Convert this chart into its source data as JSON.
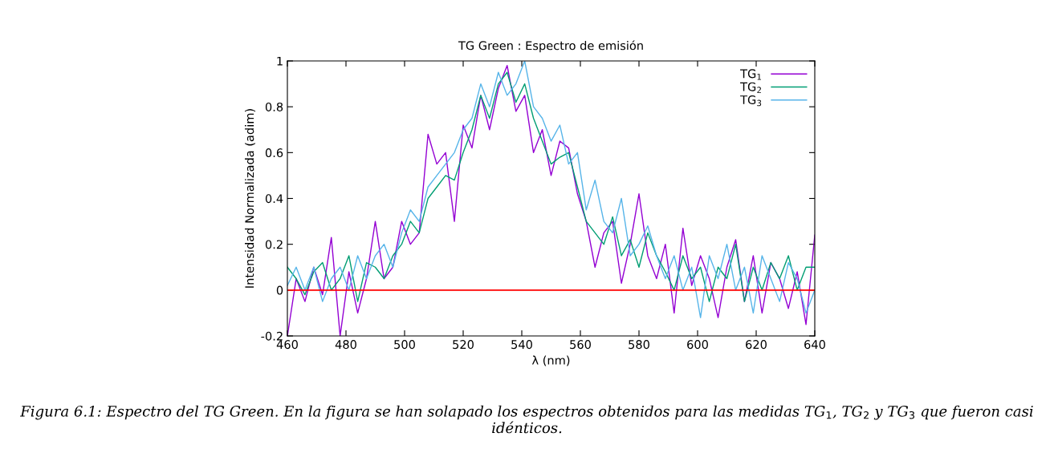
{
  "chart_data": {
    "type": "line",
    "title": "TG Green : Espectro de emisión",
    "xlabel": "λ (nm)",
    "ylabel": "Intensidad Normalizada (adim)",
    "annotations": [
      "Figura 6.1: Espectro del TG Green. En la figura se han solapado los espectros obtenidos para las medidas TG$_{1}$, TG$_{2}$ y TG$_{3}$ que fueron casi idénticos."
    ],
    "x": [
      460,
      463,
      466,
      469,
      472,
      475,
      478,
      481,
      484,
      487,
      490,
      493,
      496,
      499,
      502,
      505,
      508,
      511,
      514,
      517,
      520,
      523,
      526,
      529,
      532,
      535,
      538,
      541,
      544,
      547,
      550,
      553,
      556,
      559,
      562,
      565,
      568,
      571,
      574,
      577,
      580,
      583,
      586,
      589,
      592,
      595,
      598,
      601,
      604,
      607,
      610,
      613,
      616,
      619,
      622,
      625,
      628,
      631,
      634,
      637,
      640
    ],
    "series": [
      {
        "name": "TG$_{1}$",
        "color": "#9400d3",
        "values": [
          -0.2,
          0.05,
          -0.05,
          0.1,
          -0.02,
          0.23,
          -0.2,
          0.08,
          -0.1,
          0.05,
          0.3,
          0.05,
          0.1,
          0.3,
          0.2,
          0.25,
          0.68,
          0.55,
          0.6,
          0.3,
          0.72,
          0.62,
          0.85,
          0.7,
          0.88,
          0.98,
          0.78,
          0.85,
          0.6,
          0.7,
          0.5,
          0.65,
          0.62,
          0.42,
          0.3,
          0.1,
          0.25,
          0.3,
          0.03,
          0.2,
          0.42,
          0.15,
          0.05,
          0.2,
          -0.1,
          0.27,
          0.02,
          0.15,
          0.05,
          -0.12,
          0.1,
          0.22,
          -0.05,
          0.15,
          -0.1,
          0.12,
          0.05,
          -0.08,
          0.08,
          -0.15,
          0.24
        ]
      },
      {
        "name": "TG$_{2}$",
        "color": "#009e73",
        "values": [
          0.1,
          0.05,
          -0.02,
          0.08,
          0.12,
          0.0,
          0.05,
          0.15,
          -0.05,
          0.12,
          0.1,
          0.05,
          0.15,
          0.2,
          0.3,
          0.25,
          0.4,
          0.45,
          0.5,
          0.48,
          0.6,
          0.7,
          0.85,
          0.75,
          0.9,
          0.95,
          0.82,
          0.9,
          0.75,
          0.65,
          0.55,
          0.58,
          0.6,
          0.45,
          0.3,
          0.25,
          0.2,
          0.32,
          0.15,
          0.22,
          0.1,
          0.25,
          0.15,
          0.08,
          0.0,
          0.15,
          0.05,
          0.1,
          -0.05,
          0.1,
          0.05,
          0.2,
          -0.05,
          0.1,
          0.0,
          0.12,
          0.05,
          0.15,
          0.0,
          0.1,
          0.1
        ]
      },
      {
        "name": "TG$_{3}$",
        "color": "#56b4e9",
        "values": [
          0.02,
          0.1,
          0.0,
          0.1,
          -0.05,
          0.05,
          0.1,
          0.0,
          0.15,
          0.05,
          0.15,
          0.2,
          0.1,
          0.25,
          0.35,
          0.3,
          0.45,
          0.5,
          0.55,
          0.6,
          0.7,
          0.75,
          0.9,
          0.8,
          0.95,
          0.85,
          0.9,
          1.0,
          0.8,
          0.75,
          0.65,
          0.72,
          0.55,
          0.6,
          0.35,
          0.48,
          0.3,
          0.25,
          0.4,
          0.15,
          0.2,
          0.28,
          0.15,
          0.05,
          0.15,
          0.0,
          0.1,
          -0.12,
          0.15,
          0.05,
          0.2,
          0.0,
          0.1,
          -0.1,
          0.15,
          0.05,
          -0.05,
          0.12,
          0.05,
          -0.1,
          0.0
        ]
      }
    ],
    "xlim": [
      460,
      640
    ],
    "xticks": [
      460,
      480,
      500,
      520,
      540,
      560,
      580,
      600,
      620,
      640
    ],
    "ylim": [
      -0.2,
      1
    ],
    "yticks": [
      -0.2,
      0,
      0.2,
      0.4,
      0.6,
      0.8,
      1
    ],
    "ref_lines": [
      {
        "axis": "y",
        "value": 0,
        "color": "#ff0000"
      }
    ],
    "grid": false,
    "legend": "top right",
    "marker": "none",
    "line_style": "solid"
  }
}
